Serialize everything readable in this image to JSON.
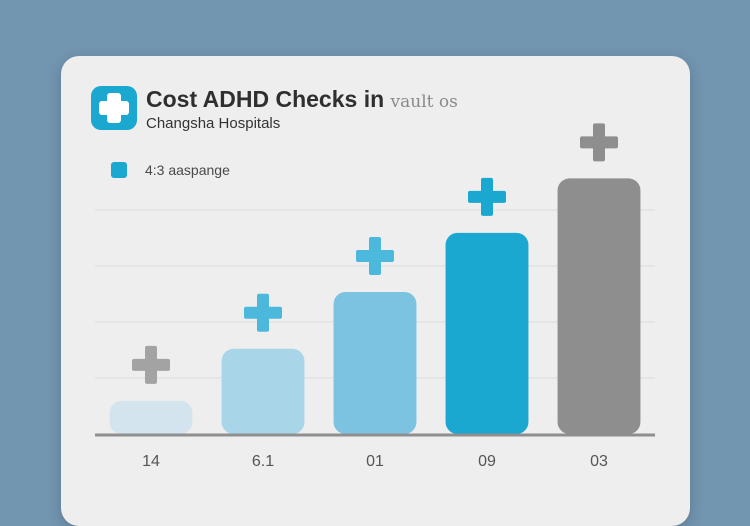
{
  "chart_data": {
    "type": "bar",
    "title": "Cost ADHD Checks in",
    "title_faded": "vault os",
    "subtitle": "Changsha Hospitals",
    "legend": [
      {
        "label": "4:3  aaspange",
        "color": "#1aa7d0"
      }
    ],
    "categories": [
      "14",
      "6.1",
      "01",
      "09",
      "03"
    ],
    "values": [
      14,
      36,
      60,
      85,
      108
    ],
    "ylim": [
      0,
      120
    ],
    "grid": true,
    "bar_colors": [
      "#d3e4ee",
      "#a9d5e9",
      "#7cc3e2",
      "#1aa7d0",
      "#8e8e8e"
    ],
    "icon_colors": [
      "#a3a3a3",
      "#4bb8dc",
      "#4bb8dc",
      "#1aa7d0",
      "#8e8e8e"
    ],
    "bar_icon": "medical-cross-icon"
  },
  "colors": {
    "background": "#7295b0",
    "card": "#eeeeee",
    "accent": "#1aa7d0"
  }
}
